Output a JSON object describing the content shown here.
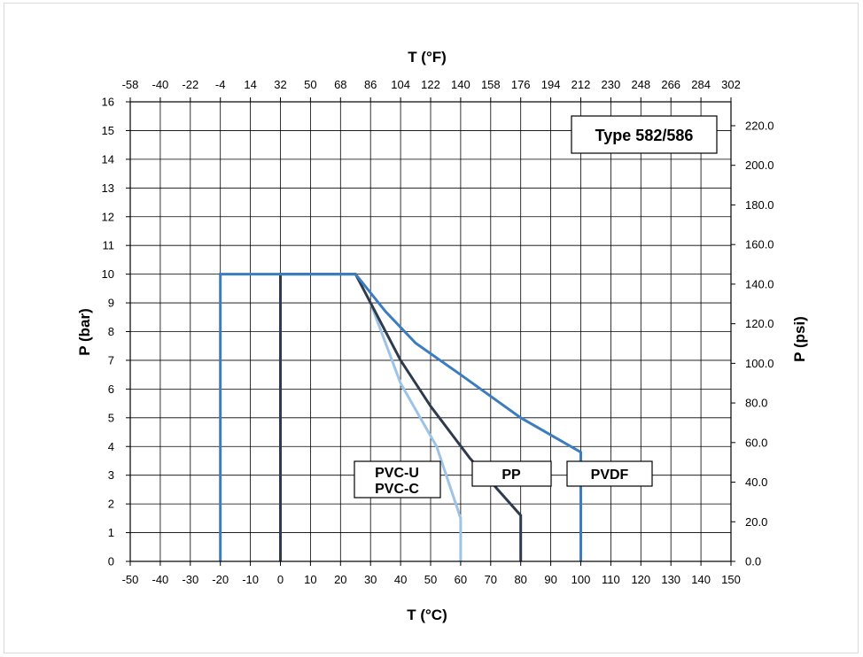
{
  "chart_data": {
    "type": "line",
    "title": "Type 582/586",
    "xlabel": "T (°C)",
    "ylabel": "P (bar)",
    "x2label": "T (°F)",
    "y2label": "P (psi)",
    "xlim": [
      -50,
      150
    ],
    "ylim": [
      0,
      16
    ],
    "x_ticks": [
      "-50",
      "-40",
      "-30",
      "-20",
      "-10",
      "0",
      "10",
      "20",
      "30",
      "40",
      "50",
      "60",
      "70",
      "80",
      "90",
      "100",
      "110",
      "120",
      "130",
      "140",
      "150"
    ],
    "y_ticks": [
      "0",
      "1",
      "2",
      "3",
      "4",
      "5",
      "6",
      "7",
      "8",
      "9",
      "10",
      "11",
      "12",
      "13",
      "14",
      "15",
      "16"
    ],
    "x2_ticks": [
      "-58",
      "-40",
      "-22",
      "-4",
      "14",
      "32",
      "50",
      "68",
      "86",
      "104",
      "122",
      "140",
      "158",
      "176",
      "194",
      "212",
      "230",
      "248",
      "266",
      "284",
      "302"
    ],
    "y2_ticks": [
      "0.0",
      "20.0",
      "40.0",
      "60.0",
      "80.0",
      "100.0",
      "120.0",
      "140.0",
      "160.0",
      "180.0",
      "200.0",
      "220.0"
    ],
    "grid": true,
    "series": [
      {
        "name": "PVC-U PVC-C",
        "color": "#9dc3e6",
        "x": [
          60,
          60,
          52,
          40,
          30
        ],
        "y": [
          0,
          1.5,
          4,
          6.2,
          9
        ]
      },
      {
        "name": "PP",
        "color": "#2e3b4e",
        "x": [
          0,
          0,
          25,
          40,
          50,
          63,
          80,
          80
        ],
        "y": [
          0,
          10,
          10,
          7,
          5.4,
          3.6,
          1.6,
          0
        ]
      },
      {
        "name": "PVDF",
        "color": "#3b7dc0",
        "x": [
          -20,
          -20,
          25,
          35,
          45,
          60,
          80,
          100,
          100
        ],
        "y": [
          0,
          10,
          10,
          8.7,
          7.6,
          6.5,
          5,
          3.8,
          0
        ]
      }
    ],
    "labels": {
      "pvc_line1": "PVC-U",
      "pvc_line2": "PVC-C",
      "pp": "PP",
      "pvdf": "PVDF"
    }
  }
}
